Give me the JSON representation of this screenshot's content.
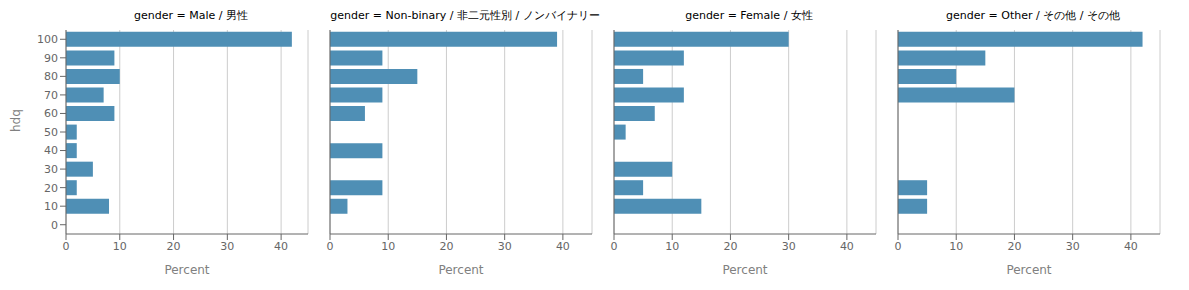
{
  "chart_data": [
    {
      "type": "bar",
      "orientation": "horizontal",
      "title": "gender = Male / 男性",
      "categories": [
        "100",
        "90",
        "80",
        "70",
        "60",
        "50",
        "40",
        "30",
        "20",
        "10",
        "0"
      ],
      "values": [
        42,
        9,
        10,
        7,
        9,
        2,
        2,
        5,
        2,
        8,
        0
      ],
      "color": "#4f8fb5",
      "xlabel": "Percent",
      "ylabel": "hdq",
      "xlim": [
        0,
        45
      ],
      "xticks": [
        0,
        10,
        20,
        30,
        40
      ],
      "grid": true
    },
    {
      "type": "bar",
      "orientation": "horizontal",
      "title": "gender = Non-binary / 非二元性別 / ノンバイナリー",
      "categories": [
        "100",
        "90",
        "80",
        "70",
        "60",
        "50",
        "40",
        "30",
        "20",
        "10",
        "0"
      ],
      "values": [
        39,
        9,
        15,
        9,
        6,
        0,
        9,
        0,
        9,
        3,
        0
      ],
      "color": "#4f8fb5",
      "xlabel": "Percent",
      "xlim": [
        0,
        45
      ],
      "xticks": [
        0,
        10,
        20,
        30,
        40
      ],
      "grid": true,
      "tick_labels": "x"
    },
    {
      "type": "bar",
      "orientation": "horizontal",
      "title": "gender = Female / 女性",
      "categories": [
        "100",
        "90",
        "80",
        "70",
        "60",
        "50",
        "40",
        "30",
        "20",
        "10",
        "0"
      ],
      "values": [
        30,
        12,
        5,
        12,
        7,
        2,
        0,
        10,
        5,
        15,
        0
      ],
      "color": "#4f8fb5",
      "xlabel": "Percent",
      "xlim": [
        0,
        45
      ],
      "xticks": [
        0,
        10,
        20,
        30,
        40
      ],
      "grid": true,
      "tick_labels": "x"
    },
    {
      "type": "bar",
      "orientation": "horizontal",
      "title": "gender = Other / その他 / その他",
      "categories": [
        "100",
        "90",
        "80",
        "70",
        "60",
        "50",
        "40",
        "30",
        "20",
        "10",
        "0"
      ],
      "values": [
        42,
        15,
        10,
        20,
        0,
        0,
        0,
        0,
        5,
        5,
        0
      ],
      "color": "#4f8fb5",
      "xlabel": "Percent",
      "xlim": [
        0,
        45
      ],
      "xticks": [
        0,
        10,
        20,
        30,
        40
      ],
      "grid": true,
      "tick_labels": "x"
    }
  ]
}
